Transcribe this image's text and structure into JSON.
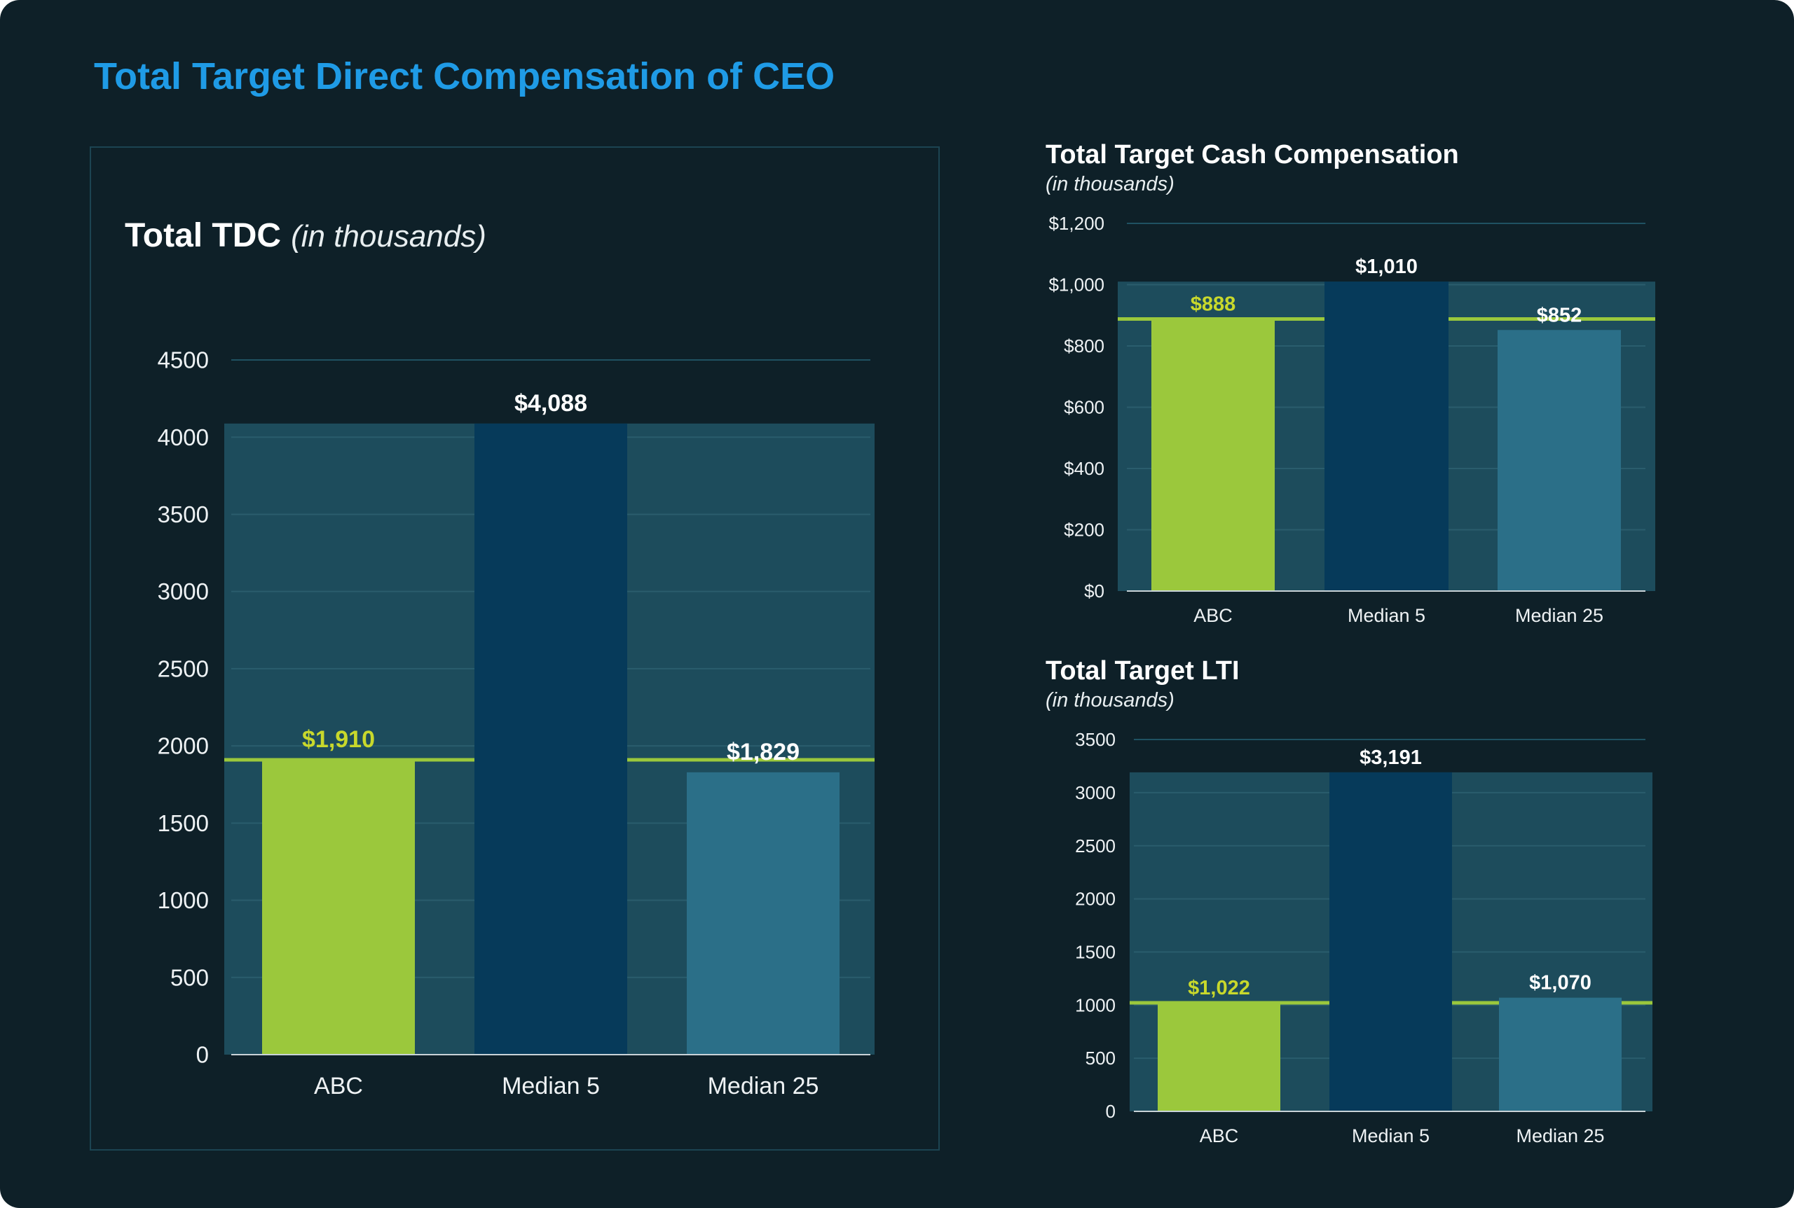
{
  "page": {
    "title": "Total Target Direct Compensation of CEO"
  },
  "colors": {
    "background": "#0e2028",
    "title": "#1f9be6",
    "abc_bar": "#9bc83c",
    "median5_bar": "#063a5a",
    "median25_bar": "#2b6f88",
    "band": "#1d4c5c",
    "abc_line": "#9bc83c",
    "grid": "#1f5262",
    "text": "#ffffff",
    "abc_label": "#c8d82c"
  },
  "chart_data": [
    {
      "id": "tdc",
      "type": "bar",
      "title": "Total TDC",
      "subtitle": "(in thousands)",
      "categories": [
        "ABC",
        "Median 5",
        "Median 25"
      ],
      "values": [
        1910,
        4088,
        1829
      ],
      "value_labels": [
        "$1,910",
        "$4,088",
        "$1,829"
      ],
      "yticks": [
        0,
        500,
        1000,
        1500,
        2000,
        2500,
        3000,
        3500,
        4000,
        4500
      ],
      "ytick_labels": [
        "0",
        "500",
        "1000",
        "1500",
        "2000",
        "2500",
        "3000",
        "3500",
        "4000",
        "4500"
      ],
      "ylim": [
        0,
        4500
      ],
      "band_top": 4088,
      "reference_line": 1910
    },
    {
      "id": "cash",
      "type": "bar",
      "title": "Total Target Cash Compensation",
      "subtitle": "(in thousands)",
      "categories": [
        "ABC",
        "Median 5",
        "Median 25"
      ],
      "values": [
        888,
        1010,
        852
      ],
      "value_labels": [
        "$888",
        "$1,010",
        "$852"
      ],
      "yticks": [
        0,
        200,
        400,
        600,
        800,
        1000,
        1200
      ],
      "ytick_labels": [
        "$0",
        "$200",
        "$400",
        "$600",
        "$800",
        "$1,000",
        "$1,200"
      ],
      "ylim": [
        0,
        1200
      ],
      "band_top": 1010,
      "reference_line": 888
    },
    {
      "id": "lti",
      "type": "bar",
      "title": "Total Target LTI",
      "subtitle": "(in thousands)",
      "categories": [
        "ABC",
        "Median 5",
        "Median 25"
      ],
      "values": [
        1022,
        3191,
        1070
      ],
      "value_labels": [
        "$1,022",
        "$3,191",
        "$1,070"
      ],
      "yticks": [
        0,
        500,
        1000,
        1500,
        2000,
        2500,
        3000,
        3500
      ],
      "ytick_labels": [
        "0",
        "500",
        "1000",
        "1500",
        "2000",
        "2500",
        "3000",
        "3500"
      ],
      "ylim": [
        0,
        3500
      ],
      "band_top": 3191,
      "reference_line": 1022
    }
  ]
}
